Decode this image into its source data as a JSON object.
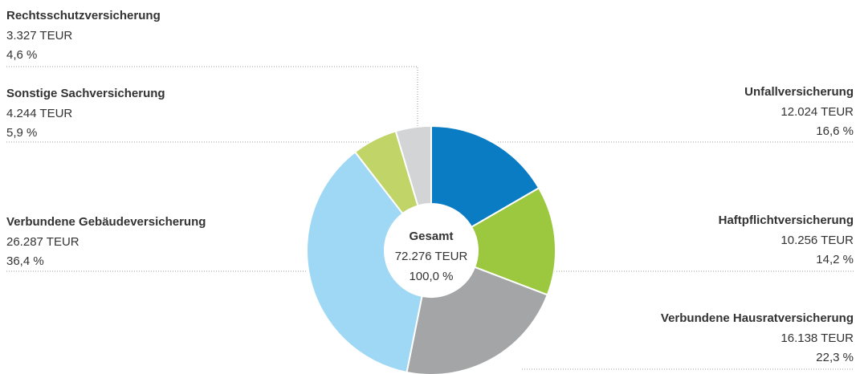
{
  "chart_data": {
    "type": "donut",
    "categories": [
      "Unfallversicherung",
      "Haftpflichtversicherung",
      "Verbundene Hausratversicherung",
      "Verbundene Gebäudeversicherung",
      "Sonstige Sachversicherung",
      "Rechtsschutzversicherung"
    ],
    "values": [
      12024,
      10256,
      16138,
      26287,
      4244,
      3327
    ],
    "value_labels": [
      "12.024 TEUR",
      "10.256 TEUR",
      "16.138 TEUR",
      "26.287 TEUR",
      "4.244 TEUR",
      "3.327 TEUR"
    ],
    "percentages": [
      16.6,
      14.2,
      22.3,
      36.4,
      5.9,
      4.6
    ],
    "percentage_labels": [
      "16,6 %",
      "14,2 %",
      "22,3 %",
      "36,4 %",
      "5,9 %",
      "4,6 %"
    ],
    "colors": [
      "#0a7cc4",
      "#9bc83f",
      "#a3a5a6",
      "#9fd8f5",
      "#c0d468",
      "#d3d4d5"
    ],
    "center_title": "Gesamt",
    "total": 72276,
    "total_label": "72.276 TEUR",
    "total_percentage": 100.0,
    "total_percentage_label": "100,0 %"
  }
}
